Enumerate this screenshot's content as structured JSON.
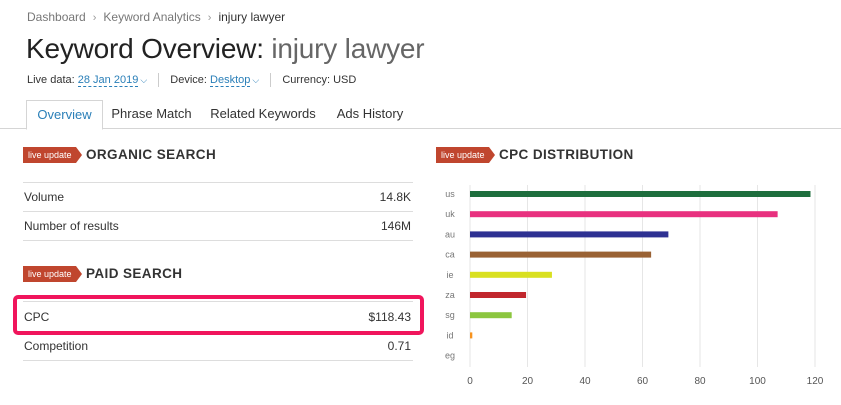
{
  "breadcrumb": {
    "items": [
      "Dashboard",
      "Keyword Analytics",
      "injury lawyer"
    ],
    "sep": "›"
  },
  "title": {
    "prefix": "Keyword Overview:",
    "keyword": "injury lawyer"
  },
  "meta": {
    "live_data_label": "Live data:",
    "live_data_value": "28 Jan 2019",
    "device_label": "Device:",
    "device_value": "Desktop",
    "currency": "Currency: USD"
  },
  "tabs": [
    "Overview",
    "Phrase Match",
    "Related Keywords",
    "Ads History"
  ],
  "badge_text": "live update",
  "organic": {
    "title": "ORGANIC SEARCH",
    "rows": [
      {
        "label": "Volume",
        "value": "14.8K"
      },
      {
        "label": "Number of results",
        "value": "146M"
      }
    ]
  },
  "paid": {
    "title": "PAID SEARCH",
    "rows": [
      {
        "label": "CPC",
        "value": "$118.43"
      },
      {
        "label": "Competition",
        "value": "0.71"
      }
    ]
  },
  "colors": {
    "accent": "#2a7fb8",
    "badge": "#c0462e",
    "highlight": "#f0155c"
  },
  "chart_data": {
    "type": "bar",
    "orientation": "horizontal",
    "title": "CPC DISTRIBUTION",
    "categories": [
      "us",
      "uk",
      "au",
      "ca",
      "ie",
      "za",
      "sg",
      "id",
      "eg"
    ],
    "values": [
      118.43,
      107,
      69,
      63,
      28.5,
      19.5,
      14.5,
      0.8,
      0
    ],
    "colors": [
      "#1e6e3d",
      "#e8317f",
      "#2e3192",
      "#9a6234",
      "#d9e021",
      "#c1272d",
      "#8cc63f",
      "#f7931e",
      "#999999"
    ],
    "xlim": [
      0,
      120
    ],
    "xticks": [
      0,
      20,
      40,
      60,
      80,
      100,
      120
    ],
    "grid": true
  }
}
